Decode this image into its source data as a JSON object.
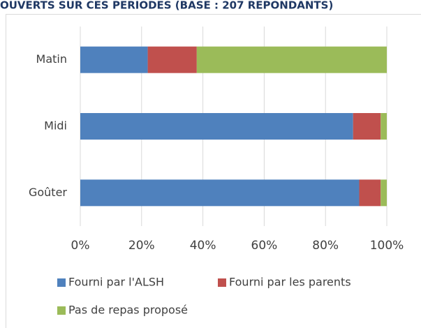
{
  "chart_data": {
    "type": "stacked-bar-horizontal",
    "title": "OUVERTS SUR CES PERIODES (BASE : 207 REPONDANTS)",
    "categories": [
      "Matin",
      "Midi",
      "Goûter"
    ],
    "series": [
      {
        "name": "Fourni par l'ALSH",
        "color": "#4f81bd",
        "values": [
          22,
          89,
          91
        ]
      },
      {
        "name": "Fourni par les parents",
        "color": "#c0504d",
        "values": [
          16,
          9,
          7
        ]
      },
      {
        "name": "Pas de repas proposé",
        "color": "#9bbb59",
        "values": [
          62,
          2,
          2
        ]
      }
    ],
    "xlim": [
      0,
      100
    ],
    "xticks": [
      {
        "value": 0,
        "label": "0%"
      },
      {
        "value": 20,
        "label": "20%"
      },
      {
        "value": 40,
        "label": "40%"
      },
      {
        "value": 60,
        "label": "60%"
      },
      {
        "value": 80,
        "label": "80%"
      },
      {
        "value": 100,
        "label": "100%"
      }
    ],
    "grid": true
  }
}
